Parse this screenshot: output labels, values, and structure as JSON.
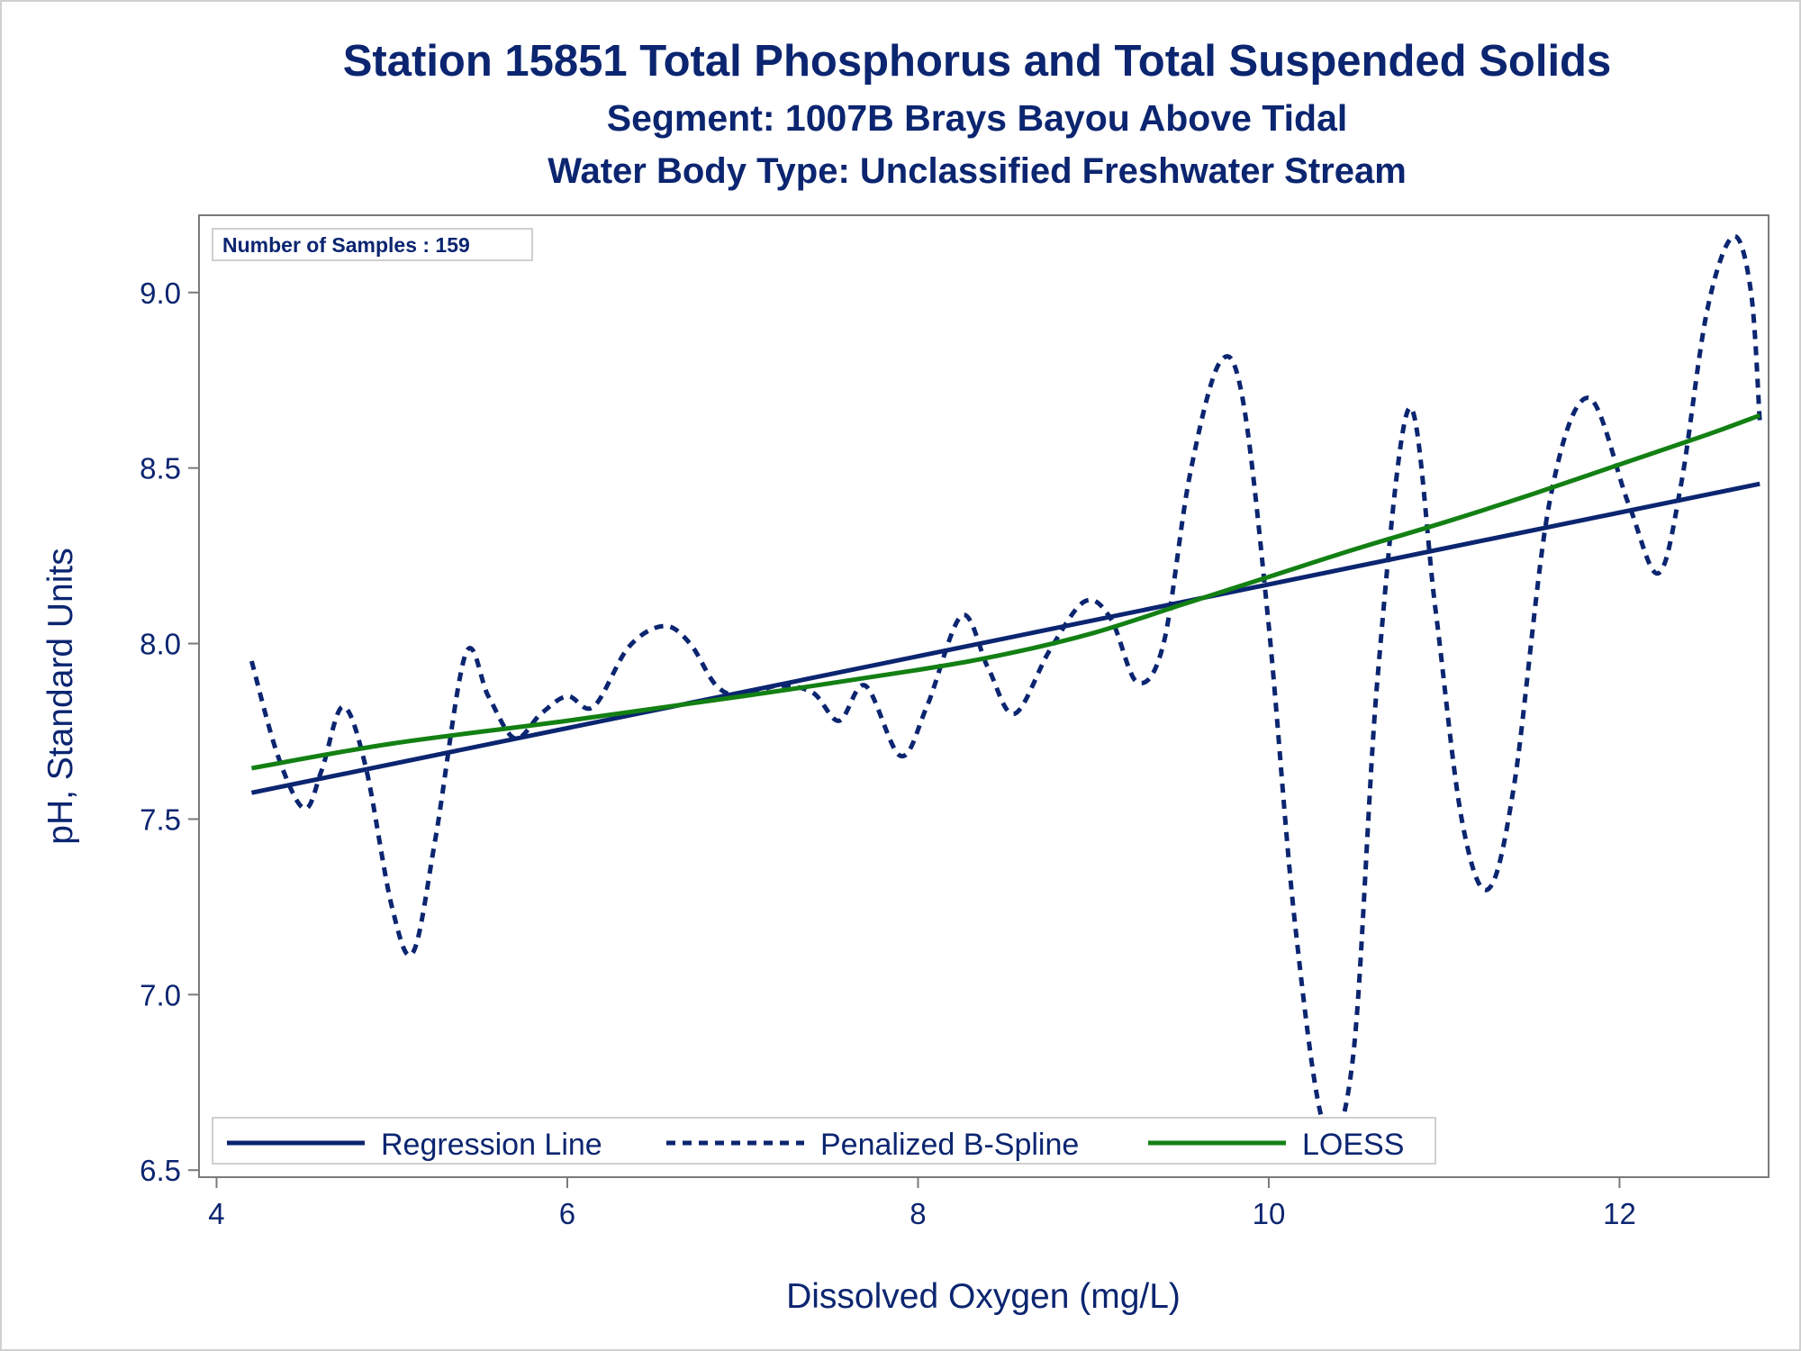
{
  "titles": {
    "line1": "Station 15851  Total Phosphorus and Total Suspended Solids",
    "line2": "Segment: 1007B  Brays Bayou Above Tidal",
    "line3": "Water Body Type: Unclassified Freshwater Stream"
  },
  "annotation": "Number of Samples : 159",
  "colors": {
    "regression": "#0b2570",
    "spline": "#0b2570",
    "loess": "#138013",
    "text": "#0b2570",
    "axis": "#7a7a7a"
  },
  "chart_data": {
    "type": "line",
    "xlabel": "Dissolved Oxygen (mg/L)",
    "ylabel": "pH, Standard Units",
    "xlim": [
      3.9,
      12.85
    ],
    "ylim": [
      6.48,
      9.22
    ],
    "xticks": [
      4,
      6,
      8,
      10,
      12
    ],
    "yticks": [
      6.5,
      7.0,
      7.5,
      8.0,
      8.5,
      9.0
    ],
    "xtick_labels": [
      "4",
      "6",
      "8",
      "10",
      "12"
    ],
    "ytick_labels": [
      "6.5",
      "7.0",
      "7.5",
      "8.0",
      "8.5",
      "9.0"
    ],
    "grid": false,
    "legend_position": "bottom-inside",
    "series": [
      {
        "name": "Regression Line",
        "style": "solid",
        "x": [
          4.2,
          12.8
        ],
        "y": [
          7.575,
          8.455
        ]
      },
      {
        "name": "Penalized B-Spline",
        "style": "dashed",
        "x": [
          4.2,
          4.35,
          4.5,
          4.6,
          4.72,
          4.85,
          5.0,
          5.12,
          5.25,
          5.42,
          5.55,
          5.7,
          5.85,
          6.0,
          6.15,
          6.35,
          6.55,
          6.7,
          6.85,
          7.0,
          7.2,
          7.4,
          7.55,
          7.7,
          7.9,
          8.05,
          8.25,
          8.4,
          8.55,
          8.75,
          8.95,
          9.1,
          9.25,
          9.4,
          9.55,
          9.72,
          9.85,
          10.0,
          10.15,
          10.32,
          10.48,
          10.62,
          10.8,
          10.95,
          11.1,
          11.25,
          11.4,
          11.6,
          11.82,
          12.05,
          12.22,
          12.35,
          12.5,
          12.65,
          12.75,
          12.8
        ],
        "y": [
          7.95,
          7.68,
          7.53,
          7.64,
          7.82,
          7.65,
          7.25,
          7.12,
          7.45,
          7.97,
          7.85,
          7.73,
          7.8,
          7.85,
          7.82,
          7.99,
          8.05,
          8.0,
          7.88,
          7.85,
          7.88,
          7.86,
          7.78,
          7.88,
          7.68,
          7.82,
          8.08,
          7.93,
          7.8,
          7.98,
          8.12,
          8.07,
          7.89,
          8.0,
          8.48,
          8.8,
          8.7,
          8.05,
          7.2,
          6.62,
          6.82,
          7.9,
          8.67,
          8.1,
          7.5,
          7.3,
          7.6,
          8.4,
          8.7,
          8.4,
          8.2,
          8.45,
          8.95,
          9.16,
          9.0,
          8.63
        ]
      },
      {
        "name": "LOESS",
        "style": "solid",
        "x": [
          4.2,
          5.0,
          6.0,
          7.0,
          8.0,
          8.5,
          9.0,
          9.5,
          10.0,
          10.5,
          11.0,
          11.5,
          12.0,
          12.5,
          12.8
        ],
        "y": [
          7.645,
          7.715,
          7.78,
          7.85,
          7.925,
          7.97,
          8.03,
          8.11,
          8.19,
          8.27,
          8.345,
          8.425,
          8.51,
          8.595,
          8.65
        ]
      }
    ]
  }
}
